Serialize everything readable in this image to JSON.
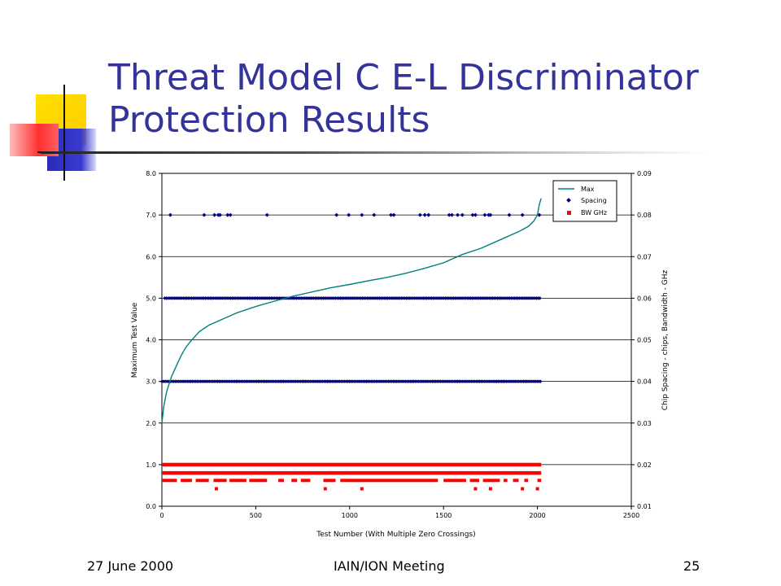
{
  "slide": {
    "title_line1": "Threat Model C E-L Discriminator",
    "title_line2": "Protection Results",
    "footer_date": "27 June 2000",
    "footer_event": "IAIN/ION Meeting",
    "footer_page": "25"
  },
  "colors": {
    "title": "#333399",
    "max_line": "#008080",
    "spacing": "#000080",
    "bw": "#ff0000",
    "deco_yellow": "#ffd200",
    "deco_blue": "#3333cc",
    "deco_red": "#ff3b3b"
  },
  "chart_data": {
    "type": "line+scatter",
    "xlabel": "Test Number (With Multiple Zero Crossings)",
    "ylabel_left": "Maximum Test Value",
    "ylabel_right": "Chip Spacing - chips, Bandwidth - GHz",
    "xlim": [
      0,
      2500
    ],
    "ylim_left": [
      0.0,
      8.0
    ],
    "ylim_right": [
      0.01,
      0.09
    ],
    "x_ticks": [
      "0",
      "500",
      "1000",
      "1500",
      "2000",
      "2500"
    ],
    "y_ticks_left": [
      "0.0",
      "1.0",
      "2.0",
      "3.0",
      "4.0",
      "5.0",
      "6.0",
      "7.0",
      "8.0"
    ],
    "y_ticks_right": [
      "0.01",
      "0.02",
      "0.03",
      "0.04",
      "0.05",
      "0.06",
      "0.07",
      "0.08",
      "0.09"
    ],
    "grid": "horizontal",
    "legend_position": "top-right",
    "series": [
      {
        "name": "Max",
        "kind": "line",
        "axis": "left",
        "x": [
          0,
          10,
          25,
          50,
          75,
          100,
          125,
          150,
          200,
          250,
          300,
          350,
          400,
          500,
          600,
          700,
          800,
          900,
          1000,
          1100,
          1200,
          1300,
          1400,
          1500,
          1600,
          1700,
          1800,
          1900,
          1950,
          1980,
          2000,
          2010,
          2020
        ],
        "y": [
          2.0,
          2.4,
          2.75,
          3.1,
          3.35,
          3.6,
          3.8,
          3.95,
          4.2,
          4.35,
          4.45,
          4.55,
          4.65,
          4.8,
          4.93,
          5.05,
          5.15,
          5.25,
          5.33,
          5.42,
          5.5,
          5.6,
          5.72,
          5.85,
          6.05,
          6.2,
          6.4,
          6.6,
          6.72,
          6.85,
          7.0,
          7.25,
          7.4
        ]
      },
      {
        "name": "Spacing",
        "kind": "scatter",
        "axis": "right",
        "bands": [
          {
            "y": 0.04,
            "x_range": [
              0,
              2020
            ]
          },
          {
            "y": 0.06,
            "x_range": [
              15,
              2020
            ]
          }
        ],
        "points_y": 0.08,
        "points_x": [
          45,
          225,
          280,
          300,
          310,
          350,
          365,
          560,
          930,
          995,
          1065,
          1130,
          1220,
          1235,
          1375,
          1400,
          1420,
          1530,
          1545,
          1575,
          1600,
          1655,
          1670,
          1720,
          1740,
          1750,
          1850,
          1920,
          2010
        ]
      },
      {
        "name": "BW GHz",
        "kind": "scatter",
        "axis": "right",
        "bands": [
          {
            "y": 0.02,
            "x_range": [
              0,
              2020
            ]
          },
          {
            "y": 0.018,
            "x_range": [
              0,
              2020
            ]
          }
        ],
        "row3_y": 0.0162,
        "row3_segments": [
          [
            0,
            80
          ],
          [
            100,
            160
          ],
          [
            180,
            250
          ],
          [
            275,
            345
          ],
          [
            360,
            450
          ],
          [
            465,
            560
          ],
          [
            620,
            650
          ],
          [
            690,
            720
          ],
          [
            740,
            790
          ],
          [
            860,
            925
          ],
          [
            950,
            1470
          ],
          [
            1500,
            1620
          ],
          [
            1640,
            1690
          ],
          [
            1710,
            1800
          ],
          [
            1820,
            1840
          ],
          [
            1870,
            1900
          ],
          [
            1930,
            1950
          ],
          [
            2000,
            2020
          ]
        ],
        "row4_y": 0.0142,
        "row4_x": [
          290,
          870,
          1065,
          1670,
          1750,
          1920,
          2000
        ]
      }
    ]
  }
}
